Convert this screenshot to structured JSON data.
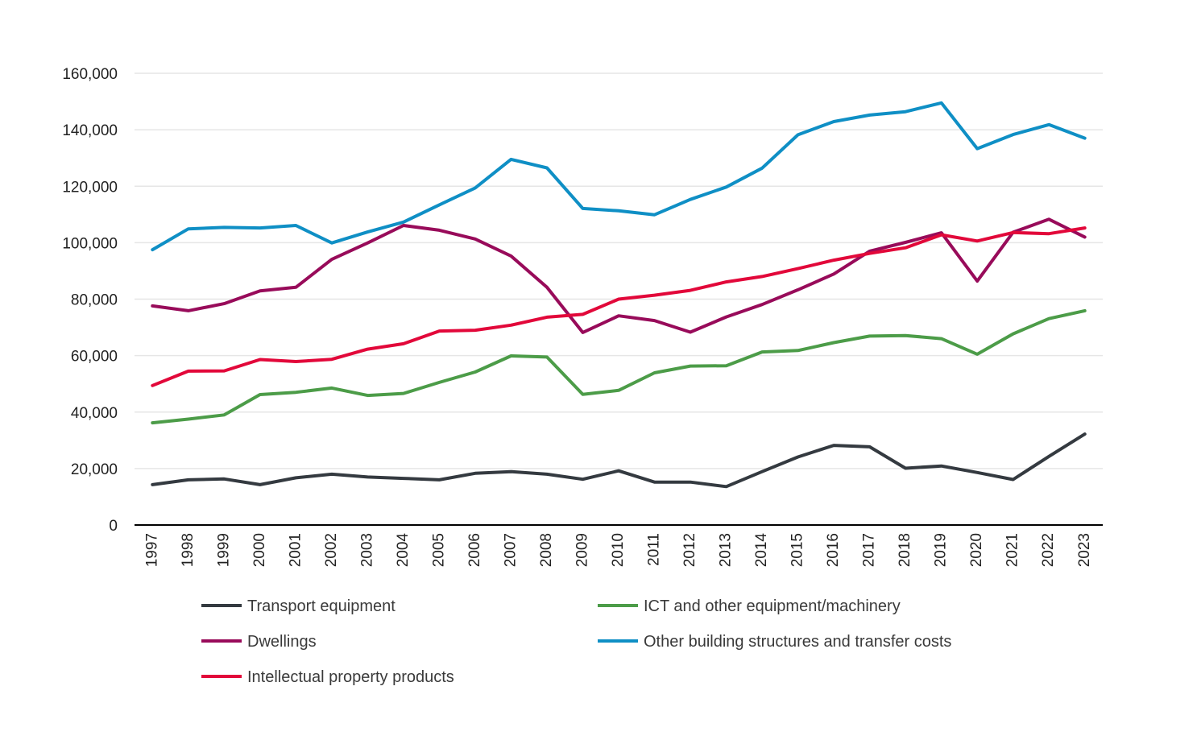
{
  "chart_data": {
    "type": "line",
    "title": "",
    "xlabel": "",
    "ylabel": "",
    "ylim": [
      0,
      160000
    ],
    "yticks": [
      0,
      20000,
      40000,
      60000,
      80000,
      100000,
      120000,
      140000,
      160000
    ],
    "ytick_labels": [
      "0",
      "20,000",
      "40,000",
      "60,000",
      "80,000",
      "100,000",
      "120,000",
      "140,000",
      "160,000"
    ],
    "grid": true,
    "legend_position": "bottom",
    "categories": [
      "1997",
      "1998",
      "1999",
      "2000",
      "2001",
      "2002",
      "2003",
      "2004",
      "2005",
      "2006",
      "2007",
      "2008",
      "2009",
      "2010",
      "2011",
      "2012",
      "2013",
      "2014",
      "2015",
      "2016",
      "2017",
      "2018",
      "2019",
      "2020",
      "2021",
      "2022",
      "2023"
    ],
    "series": [
      {
        "name": "Transport equipment",
        "color": "#343a40",
        "values": [
          14300,
          16000,
          16300,
          14300,
          16700,
          18000,
          17000,
          16500,
          16000,
          18300,
          18900,
          18000,
          16200,
          19200,
          15200,
          15200,
          13600,
          18900,
          24100,
          28200,
          27700,
          20100,
          20900,
          18600,
          16100,
          24300,
          32200
        ]
      },
      {
        "name": "ICT and other equipment/machinery",
        "color": "#4c9c48",
        "values": [
          36200,
          37500,
          39000,
          46200,
          47000,
          48500,
          45900,
          46600,
          50500,
          54200,
          59900,
          59500,
          46300,
          47700,
          53900,
          56300,
          56400,
          61300,
          61800,
          64600,
          66900,
          67100,
          66000,
          60500,
          67700,
          73100,
          75900
        ]
      },
      {
        "name": "Dwellings",
        "color": "#980b5a",
        "values": [
          77600,
          75900,
          78400,
          82900,
          84200,
          94100,
          99900,
          106100,
          104400,
          101300,
          95300,
          84200,
          68200,
          74100,
          72400,
          68300,
          73700,
          78100,
          83300,
          88900,
          97000,
          100100,
          103500,
          86400,
          103700,
          108300,
          102000
        ]
      },
      {
        "name": "Other building structures and transfer costs",
        "color": "#0f8fc5",
        "values": [
          97500,
          104900,
          105400,
          105200,
          106100,
          99900,
          103800,
          107300,
          113400,
          119400,
          129500,
          126500,
          112100,
          111300,
          109900,
          115300,
          119700,
          126400,
          138200,
          142900,
          145200,
          146400,
          149500,
          133300,
          138300,
          141800,
          137000
        ]
      },
      {
        "name": "Intellectual property products",
        "color": "#e2083a",
        "values": [
          49400,
          54500,
          54600,
          58600,
          57900,
          58700,
          62300,
          64200,
          68700,
          69000,
          70800,
          73600,
          74600,
          80000,
          81400,
          83100,
          86100,
          88000,
          90800,
          93800,
          96200,
          98200,
          102800,
          100600,
          103600,
          103200,
          105200
        ]
      }
    ]
  }
}
